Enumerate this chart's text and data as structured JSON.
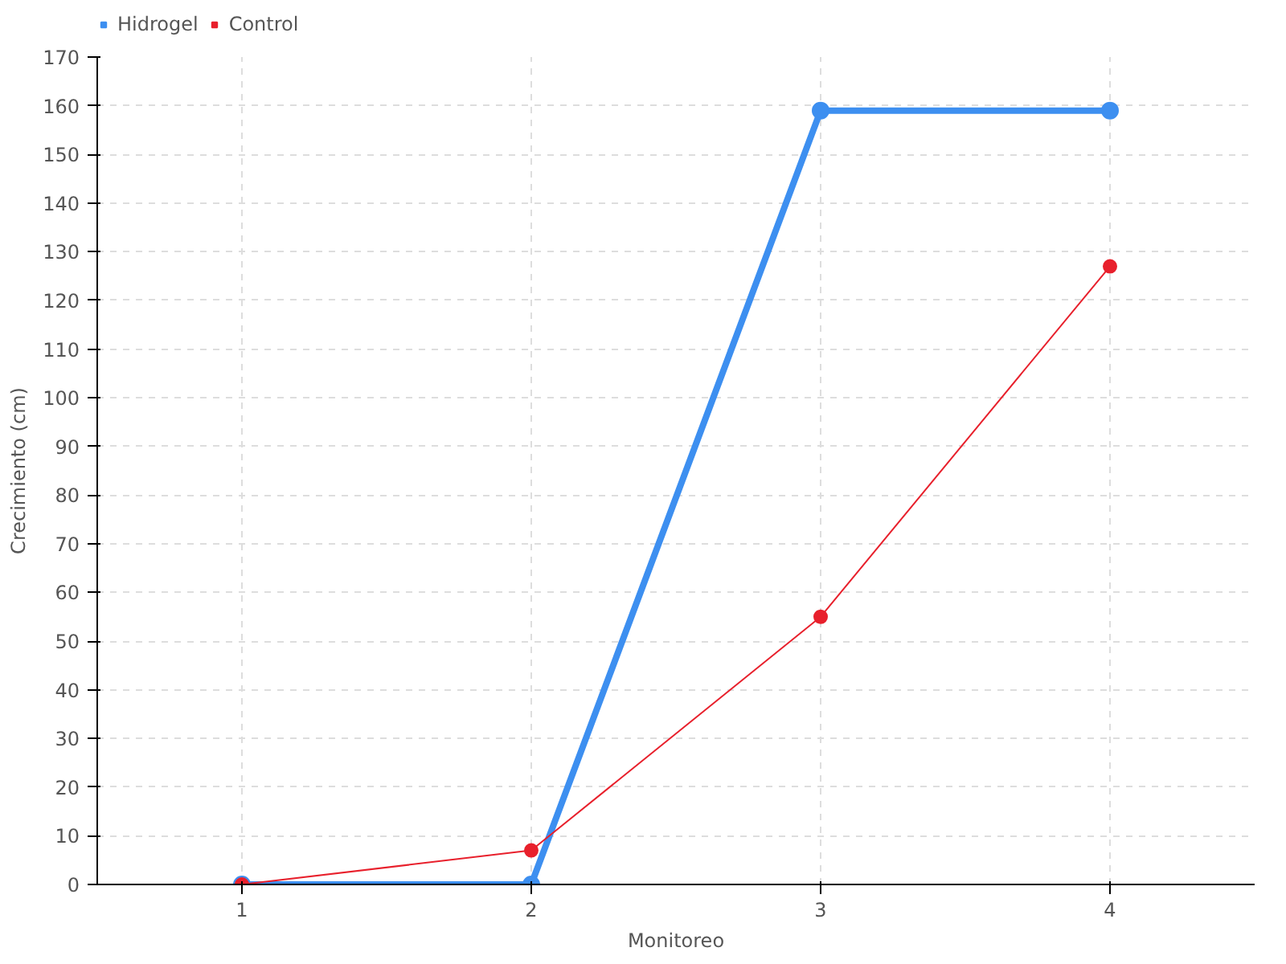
{
  "chart_data": {
    "type": "line",
    "xlabel": "Monitoreo",
    "ylabel": "Crecimiento (cm)",
    "categories": [
      "1",
      "2",
      "3",
      "4"
    ],
    "series": [
      {
        "name": "Hidrogel",
        "color": "#3d8ff0",
        "values": [
          0,
          0,
          159,
          159
        ]
      },
      {
        "name": "Control",
        "color": "#e8202c",
        "values": [
          0,
          7,
          55,
          127
        ]
      }
    ],
    "ylim": [
      0,
      170
    ],
    "yticks": [
      0,
      10,
      20,
      30,
      40,
      50,
      60,
      70,
      80,
      90,
      100,
      110,
      120,
      130,
      140,
      150,
      160,
      170
    ],
    "grid": true,
    "legend": "top left",
    "marker": "circle",
    "line_style": "solid"
  }
}
